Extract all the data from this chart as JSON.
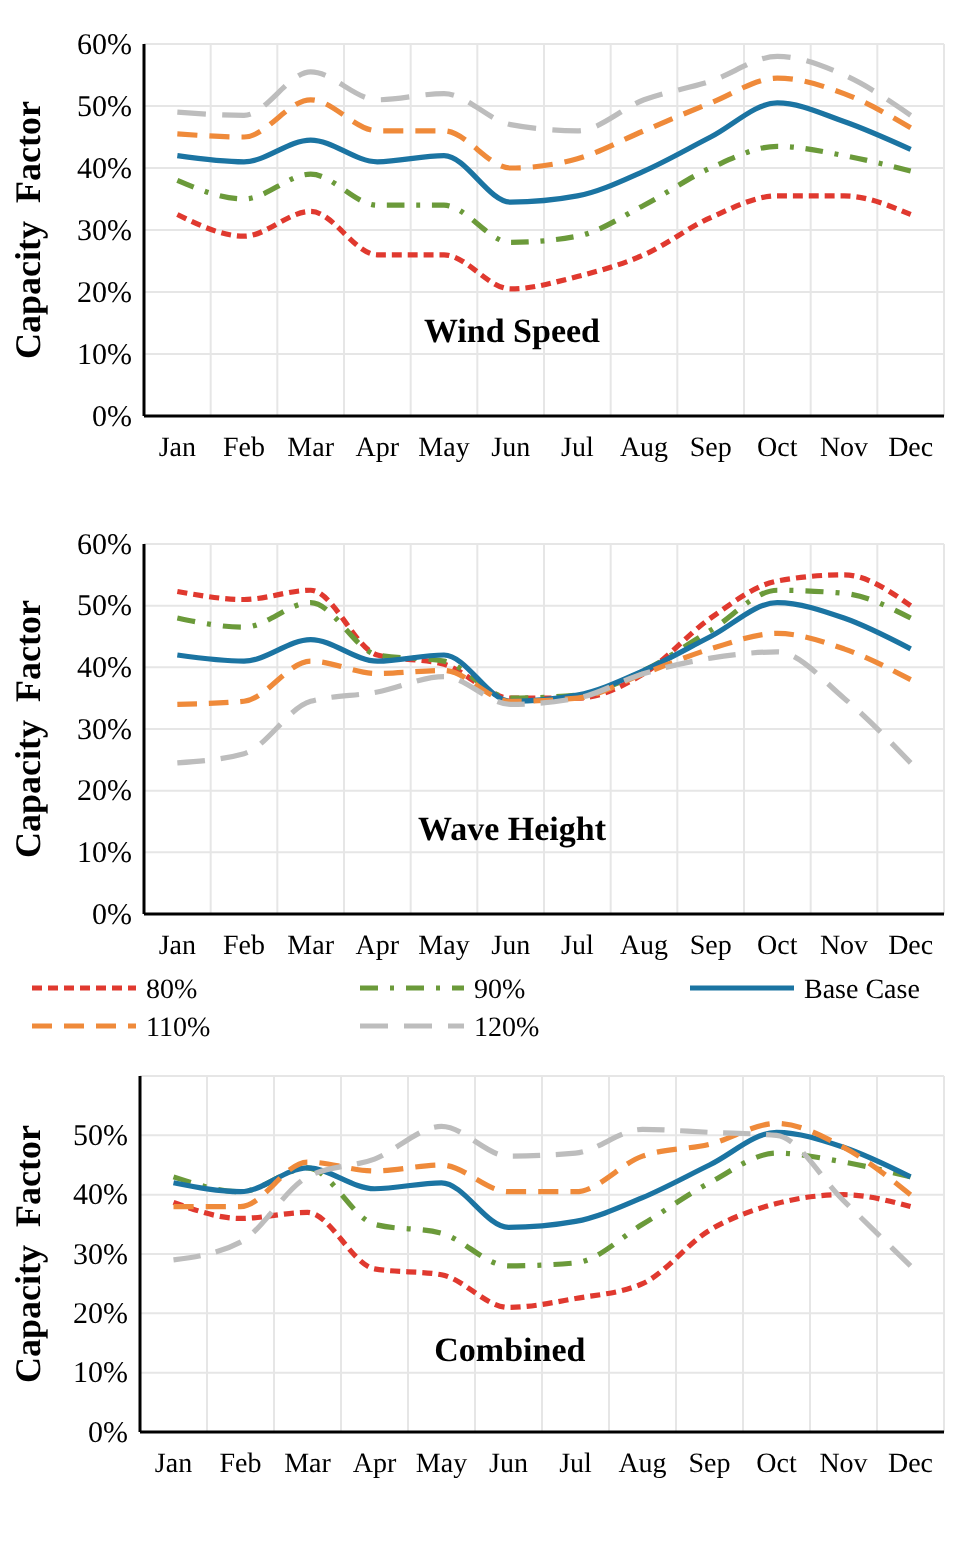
{
  "chart_data": [
    {
      "type": "line",
      "title": "Wind Speed",
      "ylabel": "Capacity  Factor",
      "categories": [
        "Jan",
        "Feb",
        "Mar",
        "Apr",
        "May",
        "Jun",
        "Jul",
        "Aug",
        "Sep",
        "Oct",
        "Nov",
        "Dec"
      ],
      "ylim": [
        0,
        60
      ],
      "yticks": [
        {
          "value": 0,
          "label": "0%"
        },
        {
          "value": 10,
          "label": "10%"
        },
        {
          "value": 20,
          "label": "20%"
        },
        {
          "value": 30,
          "label": "30%"
        },
        {
          "value": 40,
          "label": "40%"
        },
        {
          "value": 50,
          "label": "50%"
        },
        {
          "value": 60,
          "label": "60%"
        }
      ],
      "grid": true,
      "legend": false,
      "series": [
        {
          "color": "#e0392f",
          "line_style": "dashed",
          "values": [
            32.5,
            29,
            33,
            26,
            26,
            20.5,
            22.5,
            26,
            32,
            35.5,
            35.5,
            32.5
          ]
        },
        {
          "color": "#6b9a3a",
          "line_style": "dashed",
          "values": [
            38,
            35,
            39,
            34,
            34,
            28,
            29,
            34,
            40,
            43.5,
            42,
            39.5
          ]
        },
        {
          "color": "#1b74a2",
          "line_style": "solid",
          "values": [
            42,
            41,
            44.5,
            41,
            42,
            34.5,
            35.5,
            39.5,
            45,
            50.5,
            47.5,
            43
          ]
        },
        {
          "color": "#ef8a3a",
          "line_style": "dashed",
          "values": [
            45.5,
            45,
            51,
            46,
            46,
            40,
            41.5,
            46,
            50.5,
            54.5,
            52,
            46.5
          ]
        },
        {
          "color": "#bdbdbd",
          "line_style": "dashed",
          "values": [
            49,
            48.5,
            55.5,
            51,
            52,
            47,
            46,
            51,
            54,
            58,
            55,
            48.5
          ]
        }
      ]
    },
    {
      "type": "line",
      "title": "Wave  Height",
      "ylabel": "Capacity  Factor",
      "categories": [
        "Jan",
        "Feb",
        "Mar",
        "Apr",
        "May",
        "Jun",
        "Jul",
        "Aug",
        "Sep",
        "Oct",
        "Nov",
        "Dec"
      ],
      "ylim": [
        0,
        60
      ],
      "yticks": [
        {
          "value": 0,
          "label": "0%"
        },
        {
          "value": 10,
          "label": "10%"
        },
        {
          "value": 20,
          "label": "20%"
        },
        {
          "value": 30,
          "label": "30%"
        },
        {
          "value": 40,
          "label": "40%"
        },
        {
          "value": 50,
          "label": "50%"
        },
        {
          "value": 60,
          "label": "60%"
        }
      ],
      "grid": true,
      "legend": false,
      "series": [
        {
          "color": "#e0392f",
          "line_style": "dashed",
          "values": [
            52.3,
            51,
            52.5,
            42,
            40.5,
            35,
            35,
            39,
            48,
            54,
            55,
            50
          ]
        },
        {
          "color": "#6b9a3a",
          "line_style": "dashed",
          "values": [
            48,
            46.5,
            50.5,
            42,
            41,
            35,
            35.5,
            39.5,
            46,
            52.5,
            52,
            48
          ]
        },
        {
          "color": "#1b74a2",
          "line_style": "solid",
          "values": [
            42,
            41,
            44.5,
            41,
            42,
            34.5,
            35.5,
            39.5,
            45,
            50.5,
            48,
            43
          ]
        },
        {
          "color": "#ef8a3a",
          "line_style": "dashed",
          "values": [
            34,
            34.5,
            41,
            39,
            39.5,
            34.5,
            35,
            39,
            43,
            45.5,
            43,
            38
          ]
        },
        {
          "color": "#bdbdbd",
          "line_style": "dashed",
          "values": [
            24.5,
            26,
            34.5,
            36,
            38.5,
            34,
            35,
            39,
            41.5,
            42.5,
            35,
            24.5
          ]
        }
      ]
    },
    {
      "type": "line",
      "title": "Combined",
      "ylabel": "Capacity  Factor",
      "categories": [
        "Jan",
        "Feb",
        "Mar",
        "Apr",
        "May",
        "Jun",
        "Jul",
        "Aug",
        "Sep",
        "Oct",
        "Nov",
        "Dec"
      ],
      "ylim": [
        0,
        60
      ],
      "yticks": [
        {
          "value": 0,
          "label": "0%"
        },
        {
          "value": 10,
          "label": "10%"
        },
        {
          "value": 20,
          "label": "20%"
        },
        {
          "value": 30,
          "label": "30%"
        },
        {
          "value": 40,
          "label": "40%"
        },
        {
          "value": 50,
          "label": "50%"
        },
        {
          "value": 60,
          "label": null
        }
      ],
      "grid": true,
      "legend": "top",
      "series": [
        {
          "name": "80%",
          "color": "#e0392f",
          "line_style": "dashed",
          "values": [
            38.7,
            36,
            37,
            27.5,
            26.5,
            21,
            22.5,
            25,
            34,
            38.5,
            40,
            38
          ]
        },
        {
          "name": "90%",
          "color": "#6b9a3a",
          "line_style": "dashed",
          "values": [
            43,
            40.5,
            44.5,
            35,
            33.5,
            28,
            28.5,
            35,
            42,
            47,
            45.5,
            43
          ]
        },
        {
          "name": "Base Case",
          "color": "#1b74a2",
          "line_style": "solid",
          "values": [
            42,
            40.5,
            44.5,
            41,
            42,
            34.5,
            35.5,
            39.5,
            45,
            50.5,
            48,
            43
          ]
        },
        {
          "name": "110%",
          "color": "#ef8a3a",
          "line_style": "dashed",
          "values": [
            38,
            38,
            45.5,
            44,
            45,
            40.5,
            40.5,
            46.5,
            48.5,
            52,
            48,
            40
          ]
        },
        {
          "name": "120%",
          "color": "#bdbdbd",
          "line_style": "dashed",
          "values": [
            29,
            32,
            43,
            46,
            51.5,
            46.5,
            47,
            51,
            50.5,
            50,
            39,
            28
          ]
        }
      ]
    }
  ]
}
